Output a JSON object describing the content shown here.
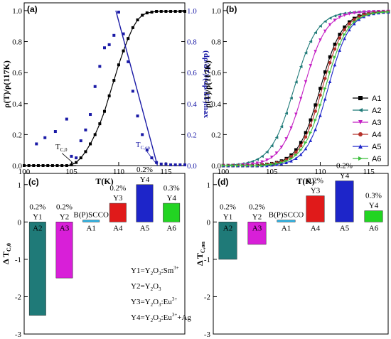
{
  "chart_data": [
    {
      "panel": "(a)",
      "type": "scatter",
      "xlabel": "T(K)",
      "ylabel": "ρ(T)/ρ(117K)",
      "y2label": "(dρ/dT)/(dρ/dT)max",
      "xlim": [
        100,
        117
      ],
      "ylim": [
        0,
        1.05
      ],
      "xticks": [
        "100",
        "105",
        "110",
        "115"
      ],
      "yticks": [
        "0.0",
        "0.2",
        "0.4",
        "0.6",
        "0.8",
        "1.0"
      ],
      "y2ticks": [
        "0.0",
        "0.2",
        "0.4",
        "0.6",
        "0.8",
        "1.0"
      ],
      "annotations": [
        {
          "text": "T",
          "sub": "C,0",
          "kind": "tc0"
        },
        {
          "text": "T",
          "sub": "C,on",
          "kind": "tcon"
        }
      ],
      "series": [
        {
          "name": "resistivity",
          "color": "#000000",
          "marker": "square-line",
          "x": [
            100.0,
            100.5,
            101.0,
            101.5,
            102.0,
            102.5,
            103.0,
            103.5,
            104.0,
            104.5,
            105.0,
            105.5,
            106.0,
            106.5,
            107.0,
            107.5,
            108.0,
            108.5,
            109.0,
            109.5,
            110.0,
            110.5,
            111.0,
            111.5,
            112.0,
            112.5,
            113.0,
            113.5,
            114.0,
            114.5,
            115.0,
            115.5,
            116.0,
            116.5,
            117.0
          ],
          "y": [
            0,
            0,
            0,
            0,
            0,
            0,
            0,
            0,
            0,
            0,
            0.005,
            0.02,
            0.05,
            0.09,
            0.14,
            0.2,
            0.27,
            0.35,
            0.45,
            0.55,
            0.65,
            0.74,
            0.82,
            0.89,
            0.94,
            0.97,
            0.985,
            0.99,
            0.995,
            0.995,
            0.995,
            0.995,
            0.995,
            0.995,
            0.995
          ]
        },
        {
          "name": "derivative",
          "color": "#1a1aa6",
          "marker": "square",
          "x": [
            101.3,
            102.2,
            103.3,
            104.5,
            105.0,
            105.5,
            106.0,
            106.5,
            107.0,
            107.5,
            108.0,
            108.5,
            109.0,
            109.5,
            110.0,
            110.5,
            111.0,
            111.5,
            112.0,
            112.5,
            113.0,
            113.5,
            114.0,
            114.5,
            115.0,
            115.5,
            116.0,
            116.5,
            117.0
          ],
          "y": [
            0.14,
            0.18,
            0.22,
            0.3,
            0.06,
            0.05,
            0.16,
            0.23,
            0.33,
            0.51,
            0.64,
            0.76,
            0.78,
            0.84,
            0.99,
            0.85,
            0.67,
            0.48,
            0.32,
            0.2,
            0.1,
            0.05,
            0.02,
            0.01,
            0.01,
            0.005,
            0.005,
            0.005,
            0.005
          ]
        },
        {
          "name": "tc0-fit",
          "color": "#000000",
          "x": [
            100,
            105.5
          ],
          "y": [
            0,
            0
          ]
        },
        {
          "name": "tcon-fit",
          "color": "#1a1aa6",
          "x": [
            109.7,
            114.1
          ],
          "y": [
            1.0,
            0.0
          ]
        }
      ]
    },
    {
      "panel": "(b)",
      "type": "line",
      "xlabel": "T(K)",
      "ylabel": "ρ(T)/ρ(117K)",
      "xlim": [
        100,
        117
      ],
      "ylim": [
        0,
        1.05
      ],
      "xticks": [
        "100",
        "105",
        "110",
        "115"
      ],
      "yticks": [
        "0.0",
        "0.2",
        "0.4",
        "0.6",
        "0.8",
        "1.0"
      ],
      "legend_position": "right-middle",
      "series": [
        {
          "name": "A1",
          "color": "#000000",
          "marker": "square",
          "mid": 110.0,
          "width": 1.15
        },
        {
          "name": "A2",
          "color": "#1f7a78",
          "marker": "triangle-left",
          "mid": 107.3,
          "width": 1.2
        },
        {
          "name": "A3",
          "color": "#c41fc4",
          "marker": "triangle-down",
          "mid": 108.3,
          "width": 1.15
        },
        {
          "name": "A4",
          "color": "#b5322b",
          "marker": "circle",
          "mid": 110.2,
          "width": 1.15
        },
        {
          "name": "A5",
          "color": "#1d25c9",
          "marker": "triangle-up",
          "mid": 110.8,
          "width": 1.1
        },
        {
          "name": "A6",
          "color": "#3fbf3f",
          "marker": "triangle-right",
          "mid": 110.5,
          "width": 1.15
        }
      ]
    },
    {
      "panel": "(c)",
      "type": "bar",
      "ylabel": "Δ T",
      "ylabel_sub": "C,0",
      "ylim": [
        -3,
        1.3
      ],
      "yticks": [
        "-3",
        "-2",
        "-1",
        "0",
        "1"
      ],
      "categories": [
        "A2",
        "A3",
        "A1",
        "A4",
        "A5",
        "A6"
      ],
      "values": [
        -2.5,
        -1.5,
        0.05,
        0.5,
        1.0,
        0.5
      ],
      "colors": [
        "#1f7a78",
        "#d81fd8",
        "#2bb5e8",
        "#e01a1a",
        "#1d25c9",
        "#22d422"
      ],
      "top_labels": [
        {
          "pct": "0.2%",
          "name": "Y1"
        },
        {
          "pct": "0.2%",
          "name": "Y2"
        },
        {
          "pct": "",
          "name": "B(P)SCCO"
        },
        {
          "pct": "0.2%",
          "name": "Y3"
        },
        {
          "pct": "0.2%",
          "name": "Y4"
        },
        {
          "pct": "0.3%",
          "name": "Y4"
        }
      ],
      "legend_lines": [
        {
          "pre": "Y1=Y",
          "s1": "2",
          "mid": "O",
          "s2": "3",
          "tail": ":Sm",
          "sup": "3+",
          "end": ""
        },
        {
          "pre": "Y2=Y",
          "s1": "2",
          "mid": "O",
          "s2": "3",
          "tail": "",
          "sup": "",
          "end": ""
        },
        {
          "pre": "Y3=Y",
          "s1": "2",
          "mid": "O",
          "s2": "3",
          "tail": ":Eu",
          "sup": "3+",
          "end": ""
        },
        {
          "pre": "Y4=Y",
          "s1": "2",
          "mid": "O",
          "s2": "3",
          "tail": ":Eu",
          "sup": "3+",
          "end": "+Ag"
        }
      ]
    },
    {
      "panel": "(d)",
      "type": "bar",
      "ylabel": "Δ T",
      "ylabel_sub": "C,on",
      "ylim": [
        -3,
        1.3
      ],
      "yticks": [
        "-3",
        "-2",
        "-1",
        "0",
        "1"
      ],
      "categories": [
        "A2",
        "A3",
        "A1",
        "A4",
        "A5",
        "A6"
      ],
      "values": [
        -1.0,
        -0.6,
        0.05,
        0.7,
        1.1,
        0.3
      ],
      "colors": [
        "#1f7a78",
        "#d81fd8",
        "#2bb5e8",
        "#e01a1a",
        "#1d25c9",
        "#22d422"
      ],
      "top_labels": [
        {
          "pct": "0.2%",
          "name": "Y1"
        },
        {
          "pct": "0.2%",
          "name": "Y2"
        },
        {
          "pct": "",
          "name": "B(P)SCCO"
        },
        {
          "pct": "0.2%",
          "name": "Y3"
        },
        {
          "pct": "0.2%",
          "name": "Y4"
        },
        {
          "pct": "0.3%",
          "name": "Y4"
        }
      ]
    }
  ]
}
